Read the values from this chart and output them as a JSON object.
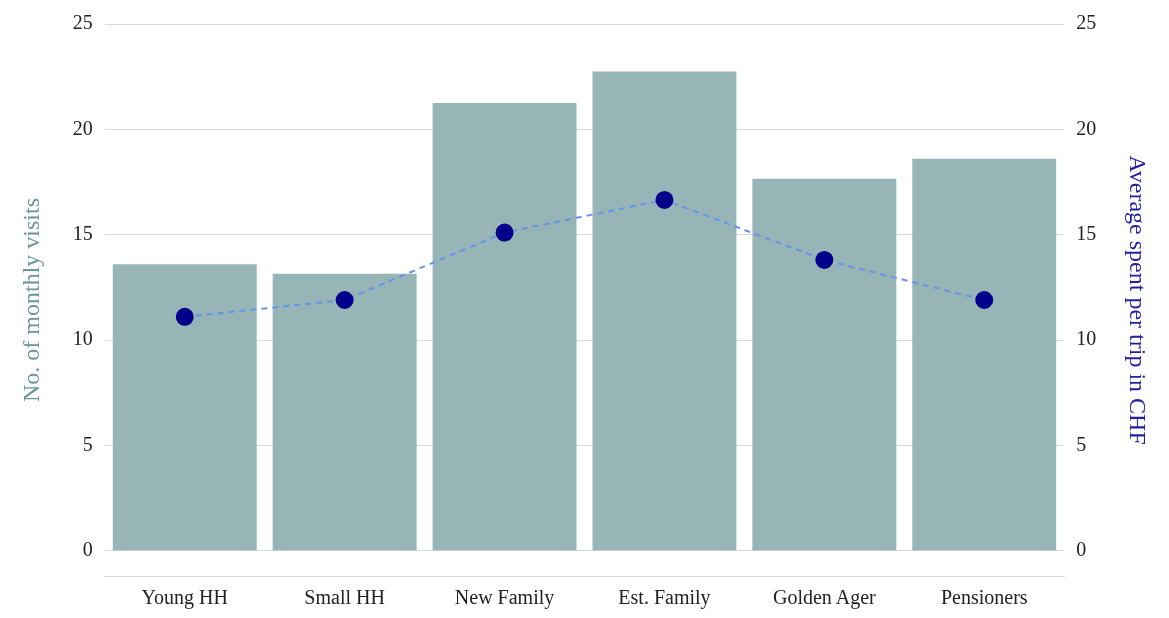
{
  "chart_data": {
    "type": "bar",
    "categories": [
      "Young HH",
      "Small HH",
      "New Family",
      "Est. Family",
      "Golden Ager",
      "Pensioners"
    ],
    "ylabel": "No. of monthly visits",
    "y2label": "Average spent per trip in CHF",
    "series": [
      {
        "color": "#97b4b7",
        "values": [
          13.6,
          13.15,
          21.25,
          22.75,
          17.65,
          18.6
        ]
      },
      {
        "type": "line",
        "axis": "y2",
        "color": "#6495ed",
        "colors": [
          "#00008b",
          "#00008b",
          "#00008b",
          "#00008b",
          "#00008b",
          "#00008b"
        ],
        "values": [
          11.1,
          11.9,
          15.1,
          16.65,
          13.8,
          11.9
        ],
        "marker": "circle",
        "line_style": "dashed"
      }
    ],
    "ylim": [
      -1.2,
      25
    ],
    "yticks": [
      0,
      5,
      10,
      15,
      20,
      25
    ],
    "y2lim": [
      -1.2,
      25
    ],
    "y2ticks": [
      0,
      5,
      10,
      15,
      20,
      25
    ],
    "grid": "y",
    "legend": false
  }
}
